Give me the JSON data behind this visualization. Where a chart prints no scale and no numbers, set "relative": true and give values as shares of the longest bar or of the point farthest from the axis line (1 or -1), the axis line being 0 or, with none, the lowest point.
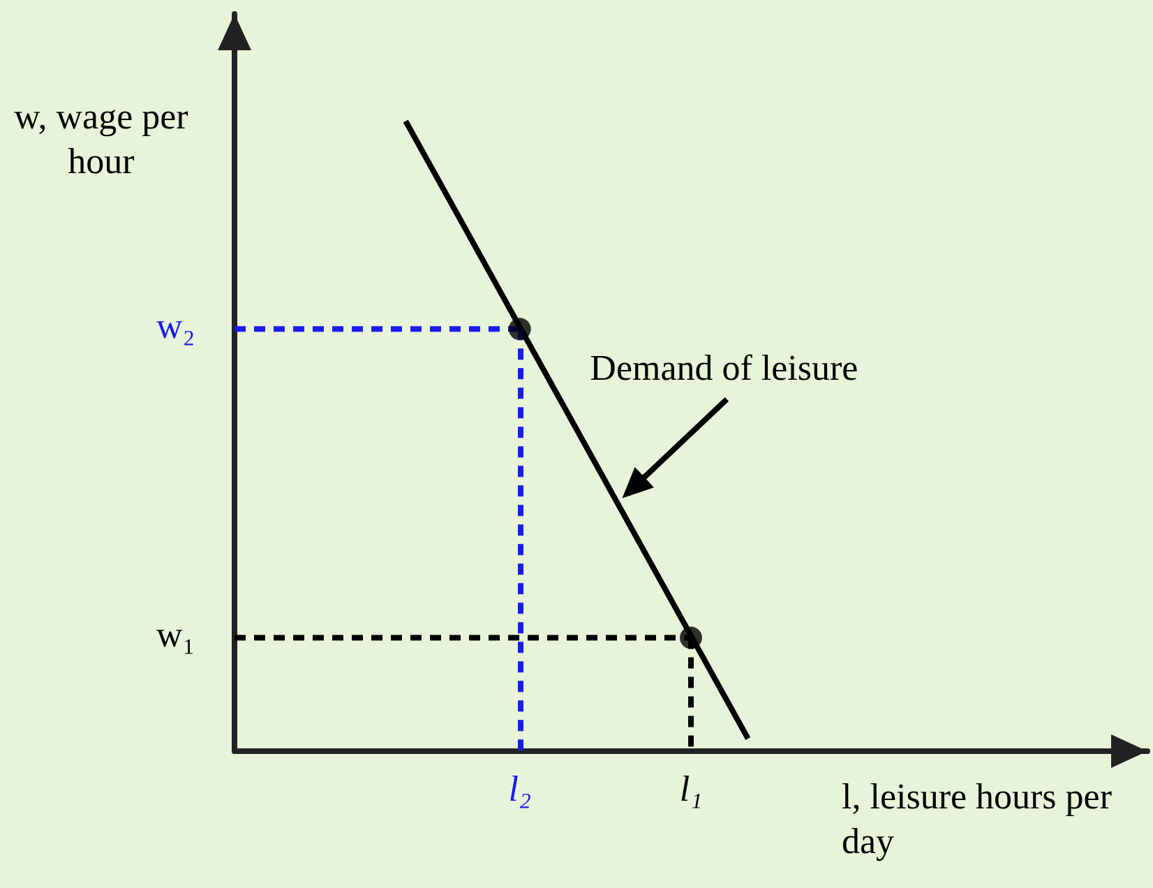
{
  "chart_data": {
    "type": "line",
    "relative": true,
    "xlabel": "l, leisure hours per day",
    "ylabel": "w, wage per hour",
    "grid": false,
    "categories": [
      null,
      null,
      null,
      null,
      null,
      "l₂",
      null,
      null,
      "l₁",
      null,
      null,
      null,
      null,
      null,
      null,
      null,
      null
    ],
    "series": [
      {
        "values": [
          null,
          null,
          null,
          1.0,
          null,
          null,
          null,
          null,
          null,
          0.02,
          null,
          null,
          null,
          null,
          null,
          null,
          null
        ],
        "color": "#000000",
        "line_style": "solid",
        "marker": "none"
      },
      {
        "values": [
          0.67,
          0.67,
          0.67,
          0.67,
          0.67,
          0.67,
          null,
          null,
          null,
          null,
          null,
          null,
          null,
          null,
          null,
          null,
          null
        ],
        "color": "#1a1aee",
        "line_style": "dashed",
        "marker": "none"
      },
      {
        "values": [
          0.18,
          0.18,
          0.18,
          0.18,
          0.18,
          0.18,
          0.18,
          0.18,
          0.18,
          null,
          null,
          null,
          null,
          null,
          null,
          null,
          null
        ],
        "color": "#000000",
        "line_style": "dashed",
        "marker": "none"
      },
      {
        "type": "scatter",
        "values": [
          null,
          null,
          null,
          null,
          null,
          0.67,
          null,
          null,
          0.18,
          null,
          null,
          null,
          null,
          null,
          null,
          null,
          null
        ],
        "color": "#000000",
        "marker": "circle"
      }
    ],
    "annotations": [
      "Demand of leisure",
      "w₂",
      "w₁"
    ]
  }
}
